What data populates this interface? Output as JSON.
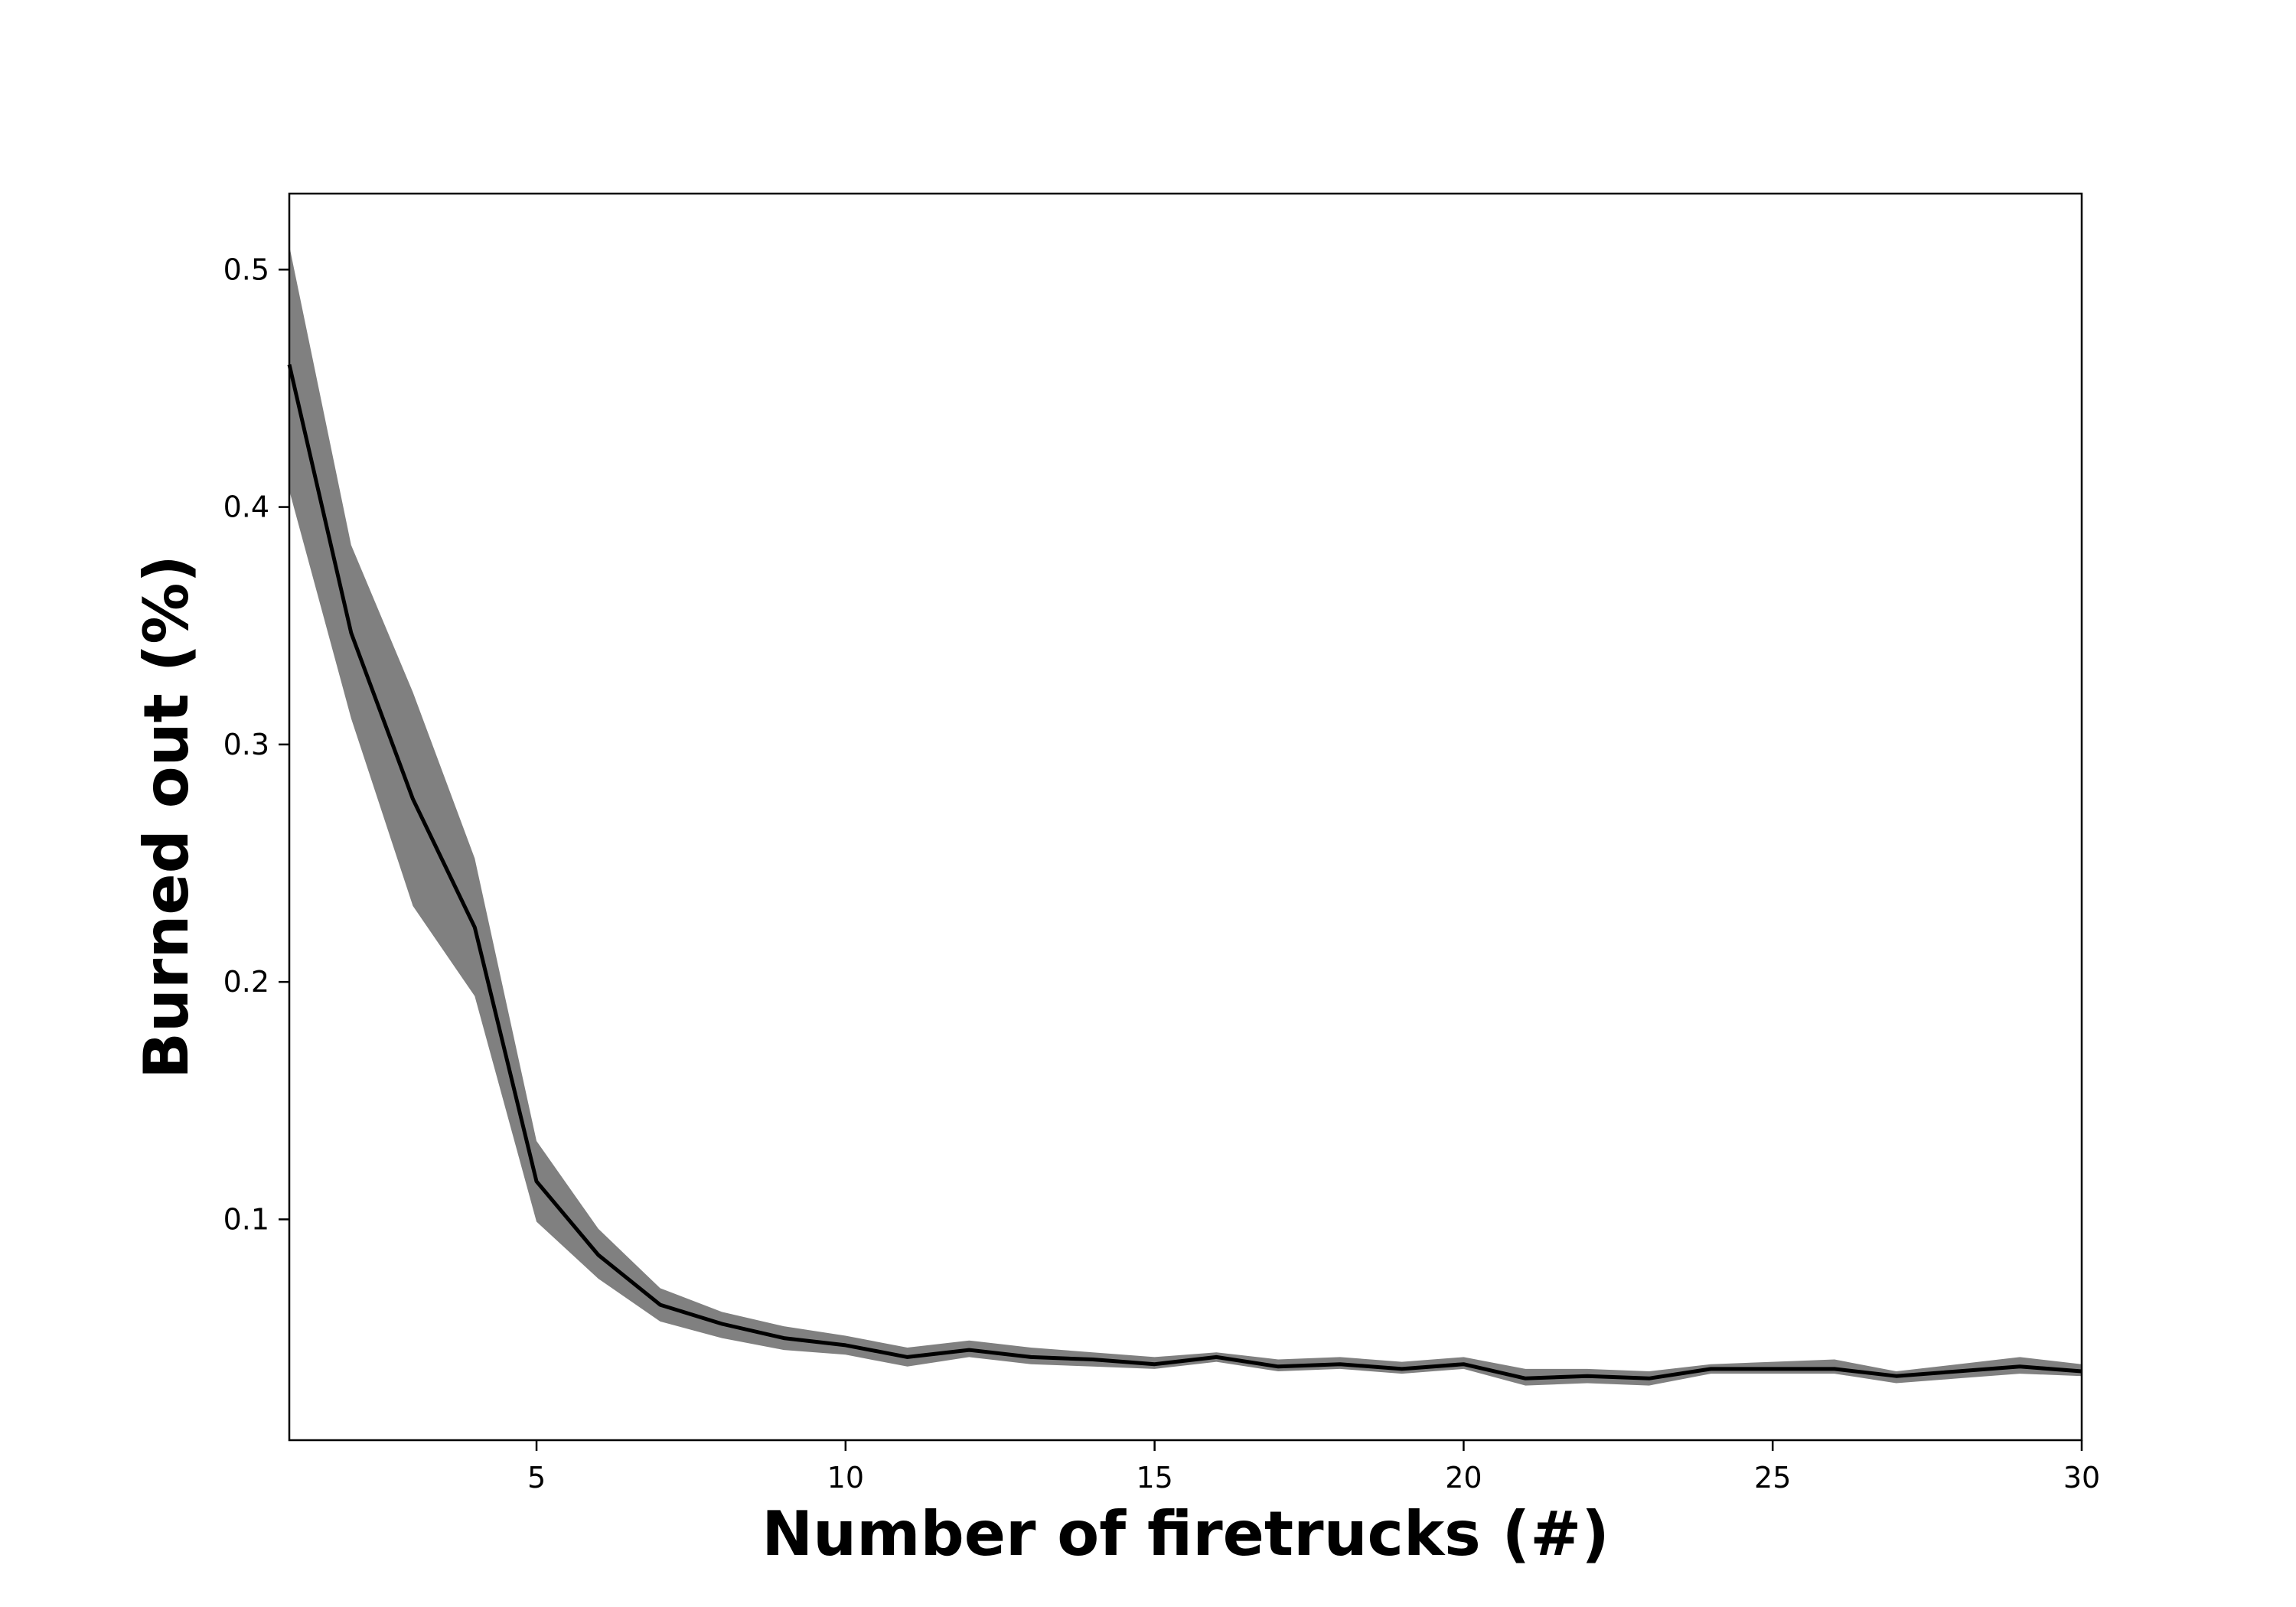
{
  "chart_data": {
    "type": "line",
    "title": "",
    "xlabel": "Number of firetrucks (#)",
    "ylabel": "Burned out (%)",
    "xlim": [
      1,
      30
    ],
    "ylim": [
      0.007,
      0.532
    ],
    "xticks": [
      5,
      10,
      15,
      20,
      25,
      30
    ],
    "yticks": [
      0.1,
      0.2,
      0.3,
      0.4,
      0.5
    ],
    "grid": false,
    "legend": "none",
    "colors": {
      "line": "#000000",
      "band": "#808080"
    },
    "series": [
      {
        "x": [
          1,
          2,
          3,
          4,
          5,
          6,
          7,
          8,
          9,
          10,
          11,
          12,
          13,
          14,
          15,
          16,
          17,
          18,
          19,
          20,
          21,
          22,
          23,
          24,
          25,
          26,
          27,
          28,
          29,
          30
        ],
        "y": [
          0.46,
          0.347,
          0.277,
          0.223,
          0.116,
          0.085,
          0.064,
          0.056,
          0.05,
          0.047,
          0.042,
          0.045,
          0.042,
          0.041,
          0.039,
          0.042,
          0.038,
          0.039,
          0.037,
          0.039,
          0.033,
          0.034,
          0.033,
          0.037,
          0.037,
          0.037,
          0.034,
          0.036,
          0.038,
          0.036
        ],
        "upper": [
          0.51,
          0.384,
          0.322,
          0.252,
          0.133,
          0.096,
          0.071,
          0.061,
          0.055,
          0.051,
          0.046,
          0.049,
          0.046,
          0.044,
          0.042,
          0.044,
          0.041,
          0.042,
          0.04,
          0.042,
          0.037,
          0.037,
          0.036,
          0.039,
          0.04,
          0.041,
          0.036,
          0.039,
          0.042,
          0.039
        ],
        "lower": [
          0.407,
          0.311,
          0.232,
          0.194,
          0.099,
          0.075,
          0.057,
          0.05,
          0.045,
          0.043,
          0.038,
          0.042,
          0.039,
          0.038,
          0.037,
          0.04,
          0.036,
          0.037,
          0.035,
          0.037,
          0.03,
          0.031,
          0.03,
          0.035,
          0.035,
          0.035,
          0.031,
          0.033,
          0.035,
          0.034
        ]
      }
    ]
  }
}
